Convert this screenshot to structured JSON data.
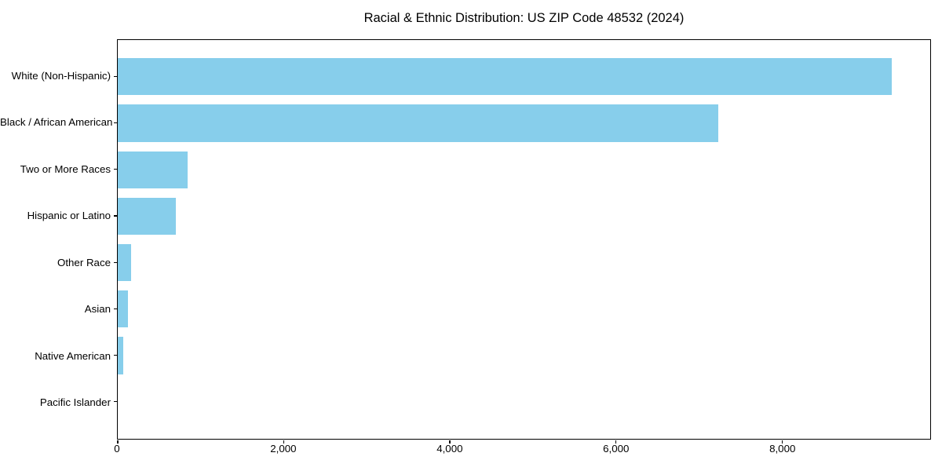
{
  "title": "Racial & Ethnic Distribution: US ZIP Code 48532 (2024)",
  "colors": {
    "bar": "#87CEEB",
    "axis": "#000000",
    "background": "#FFFFFF",
    "text": "#000000"
  },
  "chart_data": {
    "type": "bar",
    "orientation": "horizontal",
    "title": "Racial & Ethnic Distribution: US ZIP Code 48532 (2024)",
    "categories": [
      "White (Non-Hispanic)",
      "Black / African American",
      "Two or More Races",
      "Hispanic or Latino",
      "Other Race",
      "Asian",
      "Native American",
      "Pacific Islander"
    ],
    "values": [
      9320,
      7230,
      845,
      695,
      158,
      125,
      62,
      0
    ],
    "xlabel": "",
    "ylabel": "",
    "xlim": [
      0,
      9786
    ],
    "xticks": {
      "values": [
        0,
        2000,
        4000,
        6000,
        8000
      ],
      "labels": [
        "0",
        "2,000",
        "4,000",
        "6,000",
        "8,000"
      ]
    },
    "bar_color": "#87CEEB",
    "bar_height_fraction": 0.8,
    "grid": false,
    "legend": null
  }
}
